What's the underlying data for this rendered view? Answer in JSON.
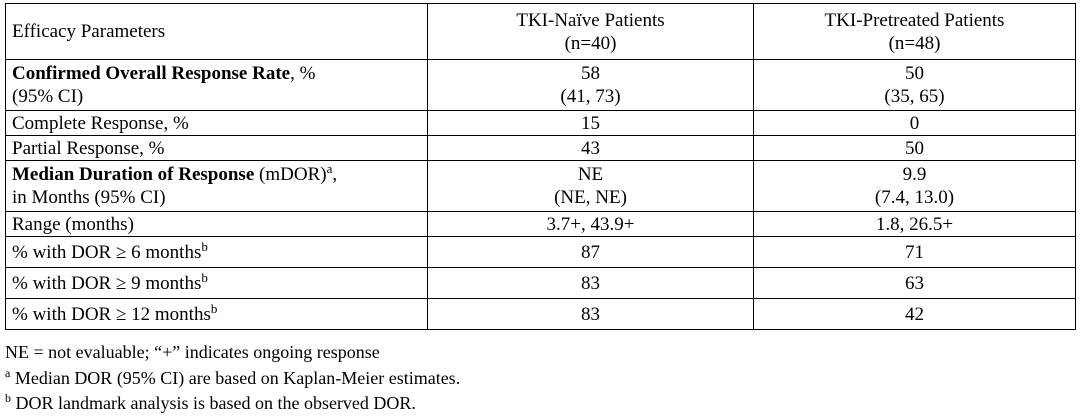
{
  "table": {
    "header": {
      "param_label": "Efficacy Parameters",
      "col1_name": "TKI-Naïve Patients",
      "col1_n": "(n=40)",
      "col2_name": "TKI-Pretreated Patients",
      "col2_n": "(n=48)"
    },
    "rows": [
      {
        "label_bold": "Confirmed Overall Response Rate",
        "label_rest": ", %",
        "label_line2": "(95% CI)",
        "naive_line1": "58",
        "naive_line2": "(41, 73)",
        "pre_line1": "50",
        "pre_line2": "(35, 65)"
      },
      {
        "label": "Complete Response, %",
        "naive": "15",
        "pre": "0"
      },
      {
        "label": "Partial Response, %",
        "naive": "43",
        "pre": "50"
      },
      {
        "label_bold": "Median Duration of Response",
        "label_rest": " (mDOR)",
        "label_sup": "a",
        "label_tail": ",",
        "label_line2": "in Months (95% CI)",
        "naive_line1": "NE",
        "naive_line2": "(NE, NE)",
        "pre_line1": "9.9",
        "pre_line2": "(7.4, 13.0)"
      },
      {
        "label": "Range (months)",
        "naive": "3.7+, 43.9+",
        "pre": "1.8, 26.5+"
      },
      {
        "label": "% with DOR ≥ 6 months",
        "label_sup": "b",
        "naive": "87",
        "pre": "71"
      },
      {
        "label": "% with DOR ≥ 9 months",
        "label_sup": "b",
        "naive": "83",
        "pre": "63"
      },
      {
        "label": "% with DOR ≥ 12 months",
        "label_sup": "b",
        "naive": "83",
        "pre": "42"
      }
    ]
  },
  "footnotes": {
    "line1": "NE = not evaluable; “+” indicates ongoing response",
    "line2_mark": "a",
    "line2": " Median DOR (95% CI) are based on Kaplan-Meier estimates.",
    "line3_mark": "b",
    "line3": " DOR landmark analysis is based on the observed DOR."
  }
}
